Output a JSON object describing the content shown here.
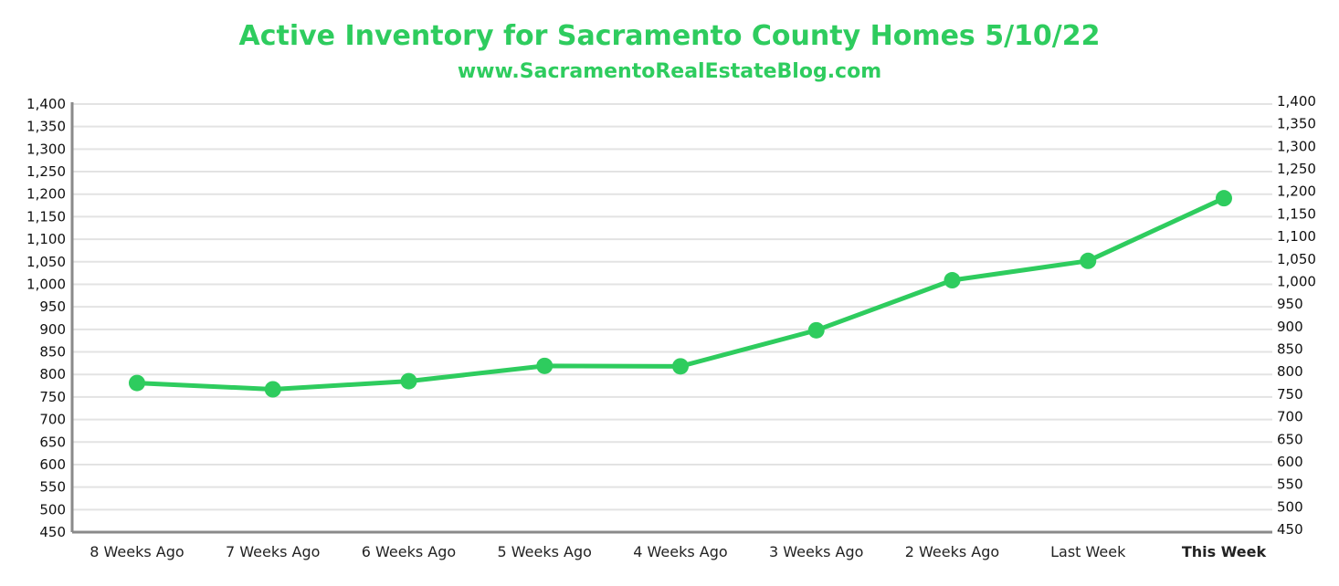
{
  "chart_data": {
    "type": "line",
    "title": "Active Inventory for Sacramento County Homes 5/10/22",
    "subtitle": "www.SacramentoRealEstateBlog.com",
    "categories": [
      "8 Weeks Ago",
      "7 Weeks Ago",
      "6 Weeks Ago",
      "5 Weeks Ago",
      "4 Weeks Ago",
      "3 Weeks Ago",
      "2 Weeks Ago",
      "Last Week",
      "This Week"
    ],
    "values": [
      781,
      767,
      785,
      819,
      818,
      898,
      1009,
      1052,
      1191
    ],
    "ylim": [
      450,
      1400
    ],
    "yticks": [
      450,
      500,
      550,
      600,
      650,
      700,
      750,
      800,
      850,
      900,
      950,
      1000,
      1050,
      1100,
      1150,
      1200,
      1250,
      1300,
      1350,
      1400
    ],
    "ytick_labels": [
      "450",
      "500",
      "550",
      "600",
      "650",
      "700",
      "750",
      "800",
      "850",
      "900",
      "950",
      "1,000",
      "1,050",
      "1,100",
      "1,150",
      "1,200",
      "1,250",
      "1,300",
      "1,350",
      "1,400"
    ],
    "grid": true,
    "secondary_y_axis": true,
    "line_color": "#2ecc5e",
    "highlight_category": "This Week",
    "highlight_color": "#2ecc5e"
  }
}
